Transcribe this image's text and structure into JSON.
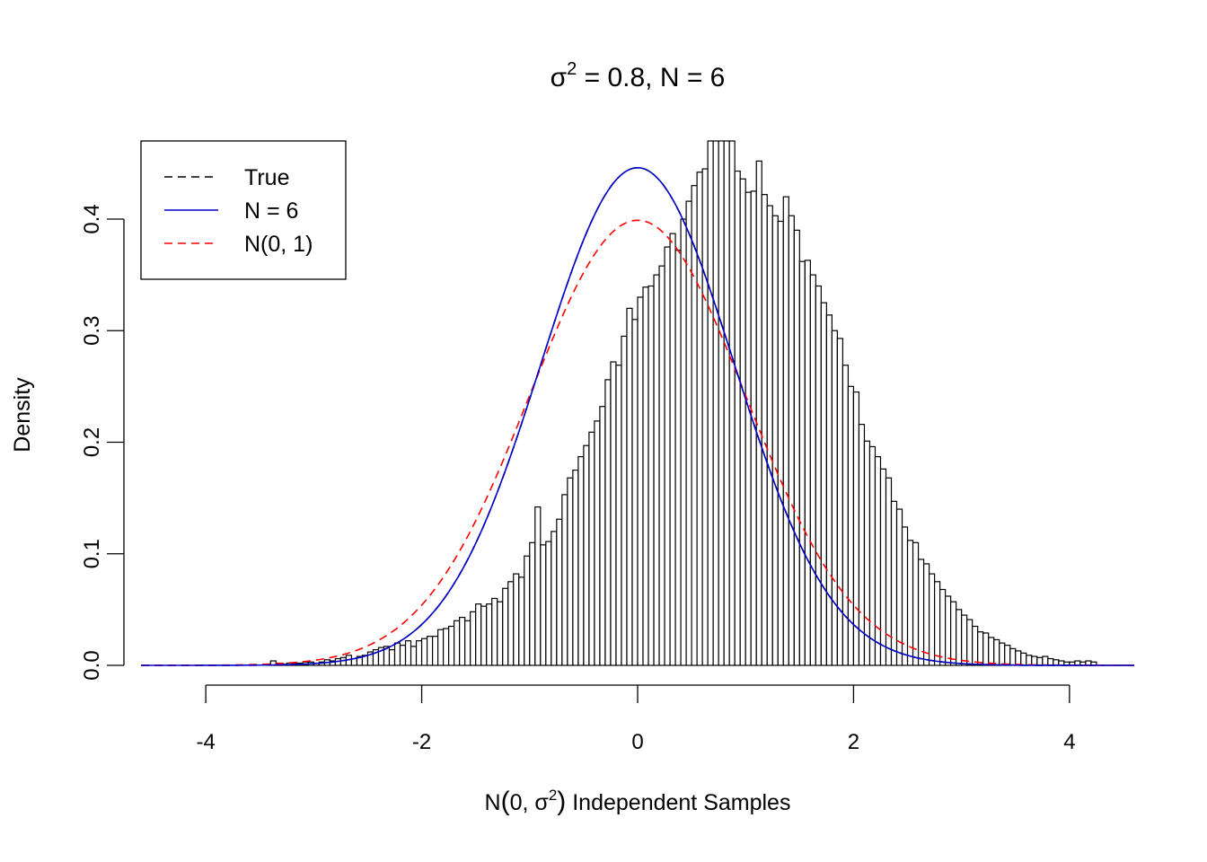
{
  "chart_data": {
    "type": "histogram",
    "title": {
      "sigma_symbol": "σ",
      "exponent": "2",
      "rest": " = 0.8, N = 6"
    },
    "xlabel": {
      "before": "N",
      "open_paren": "(",
      "inner": "0, σ",
      "exponent": "2",
      "close_paren": ")",
      "after": " Independent Samples"
    },
    "ylabel": "Density",
    "x_ticks": [
      {
        "value": -4,
        "label": "-4"
      },
      {
        "value": -2,
        "label": "-2"
      },
      {
        "value": 0,
        "label": "0"
      },
      {
        "value": 2,
        "label": "2"
      },
      {
        "value": 4,
        "label": "4"
      }
    ],
    "y_ticks": [
      {
        "value": 0.0,
        "label": "0.0"
      },
      {
        "value": 0.1,
        "label": "0.1"
      },
      {
        "value": 0.2,
        "label": "0.2"
      },
      {
        "value": 0.3,
        "label": "0.3"
      },
      {
        "value": 0.4,
        "label": "0.4"
      }
    ],
    "xlim": [
      -4.6,
      4.6
    ],
    "ylim": [
      0,
      0.47
    ],
    "histogram": {
      "start": -3.4,
      "bin_width": 0.05,
      "densities": [
        0.004,
        0.002,
        0.001,
        0.002,
        0.002,
        0.002,
        0.003,
        0.003,
        0.002,
        0.003,
        0.005,
        0.004,
        0.006,
        0.007,
        0.009,
        0.006,
        0.008,
        0.009,
        0.012,
        0.014,
        0.016,
        0.017,
        0.014,
        0.02,
        0.018,
        0.022,
        0.017,
        0.022,
        0.024,
        0.026,
        0.026,
        0.032,
        0.033,
        0.035,
        0.04,
        0.043,
        0.04,
        0.048,
        0.055,
        0.053,
        0.055,
        0.06,
        0.057,
        0.069,
        0.075,
        0.082,
        0.079,
        0.098,
        0.11,
        0.142,
        0.108,
        0.111,
        0.12,
        0.131,
        0.153,
        0.168,
        0.175,
        0.187,
        0.197,
        0.209,
        0.219,
        0.232,
        0.256,
        0.272,
        0.269,
        0.295,
        0.32,
        0.31,
        0.33,
        0.339,
        0.34,
        0.35,
        0.358,
        0.375,
        0.387,
        0.372,
        0.4,
        0.416,
        0.43,
        0.442,
        0.445,
        0.47,
        0.47,
        0.47,
        0.47,
        0.47,
        0.443,
        0.436,
        0.424,
        0.425,
        0.452,
        0.422,
        0.412,
        0.403,
        0.398,
        0.42,
        0.403,
        0.39,
        0.362,
        0.363,
        0.35,
        0.34,
        0.325,
        0.314,
        0.3,
        0.293,
        0.269,
        0.25,
        0.245,
        0.216,
        0.201,
        0.196,
        0.187,
        0.176,
        0.168,
        0.147,
        0.14,
        0.124,
        0.112,
        0.11,
        0.095,
        0.091,
        0.082,
        0.075,
        0.068,
        0.062,
        0.057,
        0.05,
        0.045,
        0.041,
        0.035,
        0.03,
        0.029,
        0.025,
        0.023,
        0.02,
        0.018,
        0.015,
        0.013,
        0.011,
        0.009,
        0.008,
        0.007,
        0.008,
        0.006,
        0.005,
        0.004,
        0.003,
        0.003,
        0.004,
        0.003,
        0.004,
        0.003
      ]
    },
    "curves": {
      "true": {
        "sd": 0.8944,
        "color": "#000000",
        "dash": "dashed"
      },
      "n6": {
        "sd": 0.8944,
        "color": "#0000cc",
        "dash": "solid"
      },
      "standard_normal": {
        "sd": 1.0,
        "color": "#ff0000",
        "dash": "dashed"
      }
    },
    "legend": {
      "position": "top-left",
      "entries": [
        {
          "label": "True",
          "color": "#000000",
          "dash": "dashed"
        },
        {
          "label": "N = 6",
          "color": "#0000cc",
          "dash": "solid"
        },
        {
          "label": "N(0, 1)",
          "color": "#ff0000",
          "dash": "dashed"
        }
      ]
    }
  }
}
